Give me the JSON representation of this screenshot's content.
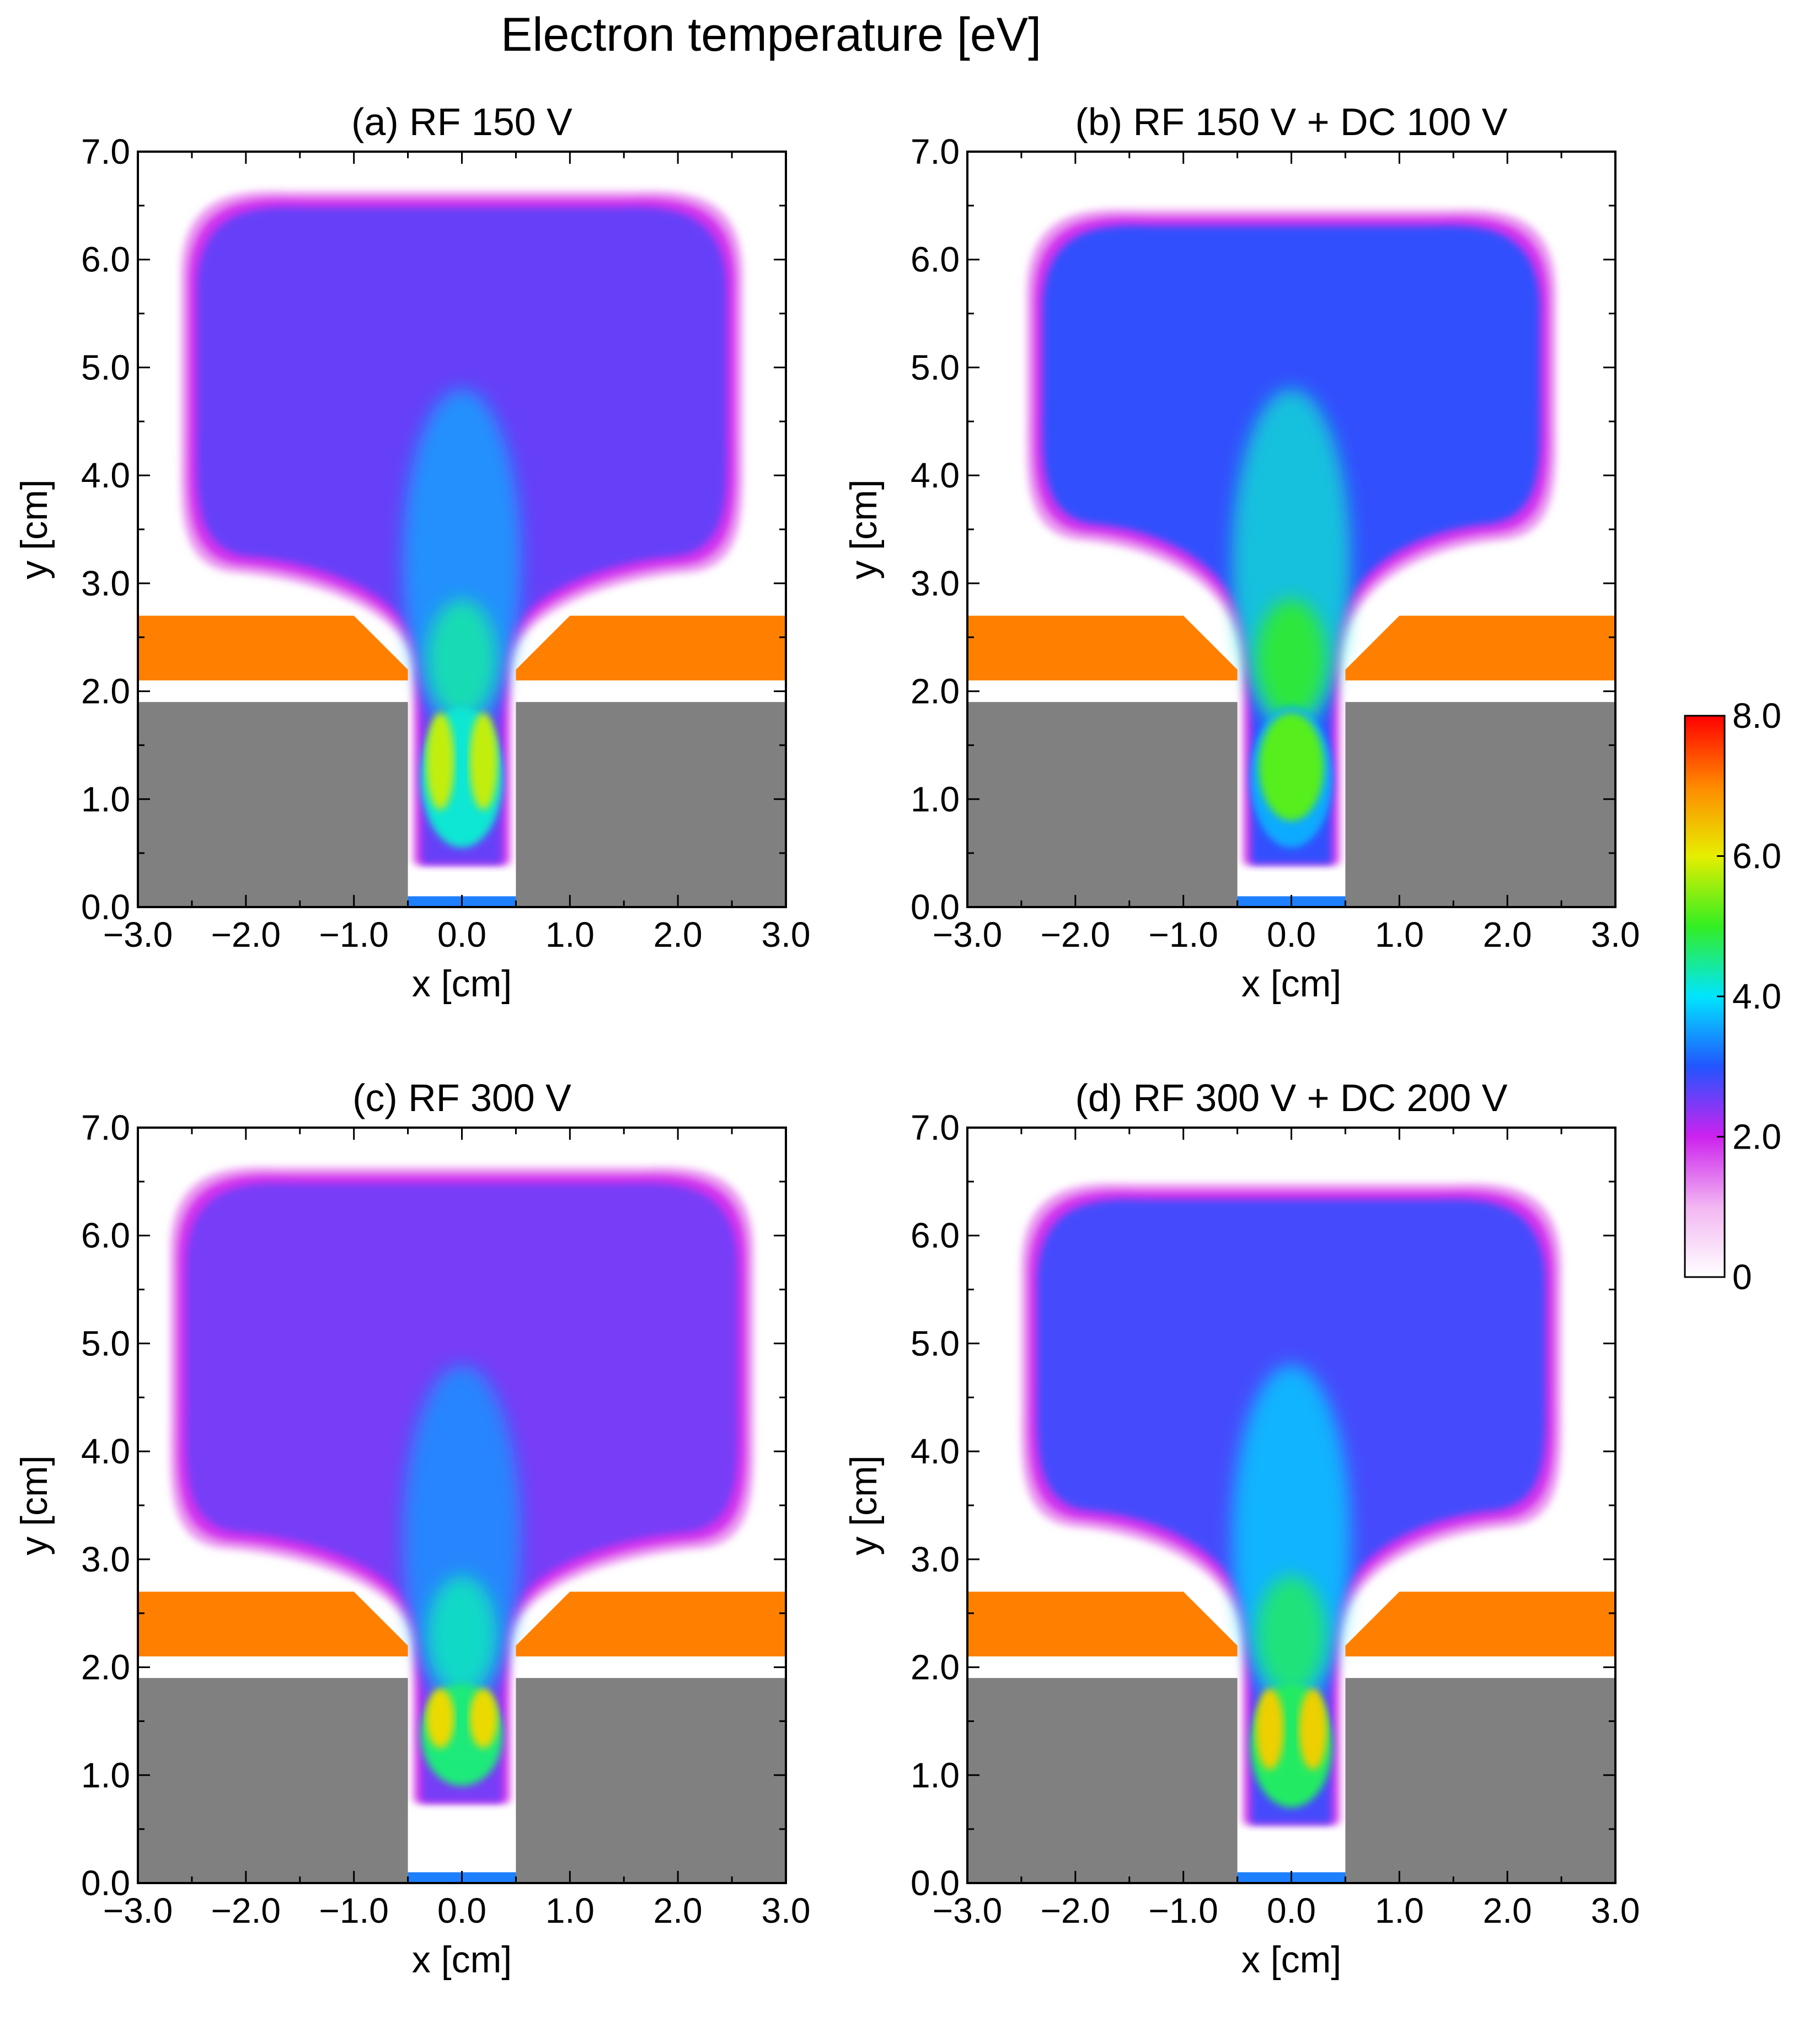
{
  "figure": {
    "title": "Electron temperature [eV]"
  },
  "colors": {
    "electrode": "#ff8000",
    "substrate": "#808080",
    "bottom_electrode": "#1e7fff",
    "colormap": [
      "#ffffff",
      "#f2b6f2",
      "#cc22ee",
      "#2255ff",
      "#00e5ff",
      "#33ee22",
      "#e6ee00",
      "#ff8800",
      "#ff0000"
    ]
  },
  "colorbar": {
    "label": "",
    "vmin": 0,
    "vmax": 8,
    "ticks": [
      {
        "value": 0,
        "label": "0"
      },
      {
        "value": 2,
        "label": "2.0"
      },
      {
        "value": 4,
        "label": "4.0"
      },
      {
        "value": 6,
        "label": "6.0"
      },
      {
        "value": 8,
        "label": "8.0"
      }
    ]
  },
  "chart_data": [
    {
      "type": "heatmap",
      "title": "(a) RF 150 V",
      "xlabel": "x [cm]",
      "ylabel": "y [cm]",
      "xlim": [
        -3.0,
        3.0
      ],
      "ylim": [
        0.0,
        7.0
      ],
      "xticks": [
        "−3.0",
        "−2.0",
        "−1.0",
        "0.0",
        "1.0",
        "2.0",
        "3.0"
      ],
      "yticks": [
        "0.0",
        "1.0",
        "2.0",
        "3.0",
        "4.0",
        "5.0",
        "6.0",
        "7.0"
      ],
      "bulk_top_y": 6.65,
      "bulk_half_width": 2.6,
      "bulk_bottom_y": 3.1,
      "bulk_te": 2.6,
      "neck_te": 3.6,
      "lobe_te": 5.8,
      "trench_floor_y": 0.25
    },
    {
      "type": "heatmap",
      "title": "(b) RF 150 V + DC 100 V",
      "xlabel": "x [cm]",
      "ylabel": "y [cm]",
      "xlim": [
        -3.0,
        3.0
      ],
      "ylim": [
        0.0,
        7.0
      ],
      "xticks": [
        "−3.0",
        "−2.0",
        "−1.0",
        "0.0",
        "1.0",
        "2.0",
        "3.0"
      ],
      "yticks": [
        "0.0",
        "1.0",
        "2.0",
        "3.0",
        "4.0",
        "5.0",
        "6.0",
        "7.0"
      ],
      "bulk_top_y": 6.48,
      "bulk_half_width": 2.45,
      "bulk_bottom_y": 3.4,
      "bulk_te": 2.9,
      "neck_te": 4.2,
      "lobe_te": 5.2,
      "trench_floor_y": 0.25
    },
    {
      "type": "heatmap",
      "title": "(c) RF 300 V",
      "xlabel": "x [cm]",
      "ylabel": "y [cm]",
      "xlim": [
        -3.0,
        3.0
      ],
      "ylim": [
        0.0,
        7.0
      ],
      "xticks": [
        "−3.0",
        "−2.0",
        "−1.0",
        "0.0",
        "1.0",
        "2.0",
        "3.0"
      ],
      "yticks": [
        "0.0",
        "1.0",
        "2.0",
        "3.0",
        "4.0",
        "5.0",
        "6.0",
        "7.0"
      ],
      "bulk_top_y": 6.65,
      "bulk_half_width": 2.7,
      "bulk_bottom_y": 3.1,
      "bulk_te": 2.5,
      "neck_te": 3.5,
      "lobe_te": 6.2,
      "trench_floor_y": 0.6
    },
    {
      "type": "heatmap",
      "title": "(d) RF 300 V + DC 200 V",
      "xlabel": "x [cm]",
      "ylabel": "y [cm]",
      "xlim": [
        -3.0,
        3.0
      ],
      "ylim": [
        0.0,
        7.0
      ],
      "xticks": [
        "−3.0",
        "−2.0",
        "−1.0",
        "0.0",
        "1.0",
        "2.0",
        "3.0"
      ],
      "yticks": [
        "0.0",
        "1.0",
        "2.0",
        "3.0",
        "4.0",
        "5.0",
        "6.0",
        "7.0"
      ],
      "bulk_top_y": 6.5,
      "bulk_half_width": 2.5,
      "bulk_bottom_y": 3.3,
      "bulk_te": 2.8,
      "neck_te": 3.9,
      "lobe_te": 6.3,
      "trench_floor_y": 0.4
    }
  ],
  "geometry_cm": {
    "electrode_y_range": [
      2.1,
      2.7
    ],
    "electrode_inner_x": 0.5,
    "electrode_bevel_x": 1.0,
    "gap_y_range": [
      1.9,
      2.1
    ],
    "substrate_top_y": 1.9,
    "trench_half_width": 0.5,
    "bottom_plate_y_range": [
      0.0,
      0.1
    ]
  }
}
